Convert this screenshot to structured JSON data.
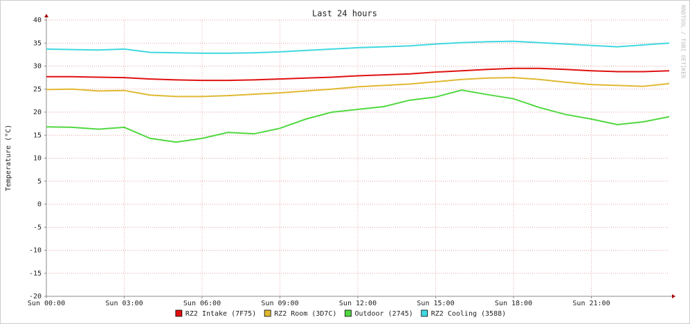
{
  "chart_data": {
    "type": "line",
    "title": "Last 24 hours",
    "y_label": "Temperature (°C)",
    "watermark": "RRDTOOL / TOBI OETIKER",
    "x": [
      0,
      1,
      2,
      3,
      4,
      5,
      6,
      7,
      8,
      9,
      10,
      11,
      12,
      13,
      14,
      15,
      16,
      17,
      18,
      19,
      20,
      21,
      22,
      23,
      24
    ],
    "xlim": [
      0,
      24
    ],
    "xticks": [
      {
        "value": 0,
        "label": "Sun 00:00"
      },
      {
        "value": 3,
        "label": "Sun 03:00"
      },
      {
        "value": 6,
        "label": "Sun 06:00"
      },
      {
        "value": 9,
        "label": "Sun 09:00"
      },
      {
        "value": 12,
        "label": "Sun 12:00"
      },
      {
        "value": 15,
        "label": "Sun 15:00"
      },
      {
        "value": 18,
        "label": "Sun 18:00"
      },
      {
        "value": 21,
        "label": "Sun 21:00"
      }
    ],
    "ylim": [
      -20,
      40
    ],
    "yticks": [
      -20,
      -15,
      -10,
      -5,
      0,
      5,
      10,
      15,
      20,
      25,
      30,
      35,
      40
    ],
    "grid": true,
    "legend": "bottom",
    "series": [
      {
        "name": "RZ2 Intake (7F75)",
        "color": "#e01010",
        "values": [
          27.7,
          27.7,
          27.6,
          27.5,
          27.2,
          27.0,
          26.9,
          26.9,
          27.0,
          27.2,
          27.4,
          27.6,
          27.9,
          28.1,
          28.3,
          28.7,
          29.0,
          29.3,
          29.5,
          29.5,
          29.3,
          29.0,
          28.8,
          28.8,
          29.0
        ]
      },
      {
        "name": "RZ2 Room (3D7C)",
        "color": "#e0b830",
        "values": [
          24.9,
          25.0,
          24.6,
          24.7,
          23.7,
          23.4,
          23.4,
          23.6,
          23.9,
          24.2,
          24.6,
          25.0,
          25.5,
          25.8,
          26.1,
          26.6,
          27.1,
          27.4,
          27.5,
          27.1,
          26.5,
          26.0,
          25.8,
          25.6,
          26.2
        ]
      },
      {
        "name": "Outdoor (2745)",
        "color": "#50d840",
        "values": [
          16.8,
          16.7,
          16.3,
          16.7,
          14.3,
          13.5,
          14.3,
          15.6,
          15.3,
          16.5,
          18.5,
          20.0,
          20.6,
          21.2,
          22.6,
          23.3,
          24.8,
          23.8,
          22.9,
          21.0,
          19.5,
          18.5,
          17.3,
          17.9,
          19.0
        ]
      },
      {
        "name": "RZ2 Cooling (3588)",
        "color": "#40d8e0",
        "values": [
          33.7,
          33.6,
          33.5,
          33.7,
          33.0,
          32.9,
          32.8,
          32.8,
          32.9,
          33.1,
          33.4,
          33.7,
          34.0,
          34.2,
          34.4,
          34.8,
          35.1,
          35.3,
          35.4,
          35.1,
          34.8,
          34.5,
          34.2,
          34.6,
          35.0
        ]
      }
    ]
  }
}
